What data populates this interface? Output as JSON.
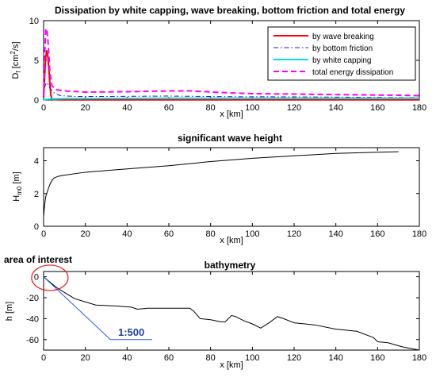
{
  "chart_data": [
    {
      "id": "p1",
      "type": "line",
      "title": "Dissipation by white capping, wave breaking, bottom friction and total energy",
      "xlabel": "x [km]",
      "ylabel_main": "D",
      "ylabel_sub": "f",
      "ylabel_unit": " [cm",
      "ylabel_sup": "2",
      "ylabel_tail": "/s]",
      "xlim": [
        0,
        180
      ],
      "ylim": [
        0,
        10
      ],
      "xticks": [
        0,
        20,
        40,
        60,
        80,
        100,
        120,
        140,
        160,
        180
      ],
      "yticks": [
        0,
        5,
        10
      ],
      "legend_position": "top-right",
      "series": [
        {
          "name": "by wave breaking",
          "color": "#ff0000",
          "dash": "solid",
          "width": 2,
          "points": [
            [
              0,
              0.3
            ],
            [
              0.5,
              3.0
            ],
            [
              1,
              5.4
            ],
            [
              1.5,
              6.2
            ],
            [
              2,
              5.5
            ],
            [
              2.5,
              4.0
            ],
            [
              3,
              2.0
            ],
            [
              3.5,
              0.6
            ],
            [
              4,
              0.15
            ],
            [
              5,
              0.05
            ],
            [
              8,
              0.03
            ],
            [
              20,
              0.02
            ],
            [
              60,
              0.02
            ],
            [
              100,
              0.02
            ],
            [
              140,
              0.02
            ],
            [
              180,
              0.02
            ]
          ]
        },
        {
          "name": "by bottom friction",
          "color": "#1a1acc",
          "dash": "dashdot",
          "width": 1,
          "points": [
            [
              0,
              0.2
            ],
            [
              0.5,
              1.6
            ],
            [
              1,
              2.0
            ],
            [
              1.5,
              2.2
            ],
            [
              2,
              2.0
            ],
            [
              3,
              1.5
            ],
            [
              5,
              0.9
            ],
            [
              8,
              0.55
            ],
            [
              15,
              0.45
            ],
            [
              30,
              0.45
            ],
            [
              60,
              0.5
            ],
            [
              90,
              0.42
            ],
            [
              120,
              0.4
            ],
            [
              150,
              0.35
            ],
            [
              180,
              0.3
            ]
          ]
        },
        {
          "name": "by white capping",
          "color": "#00e0e0",
          "dash": "solid",
          "width": 2,
          "points": [
            [
              0,
              0.05
            ],
            [
              2,
              0.1
            ],
            [
              5,
              0.15
            ],
            [
              10,
              0.18
            ],
            [
              30,
              0.2
            ],
            [
              60,
              0.22
            ],
            [
              90,
              0.22
            ],
            [
              120,
              0.22
            ],
            [
              150,
              0.22
            ],
            [
              180,
              0.22
            ]
          ]
        },
        {
          "name": "total energy dissipation",
          "color": "#ff00ff",
          "dash": "dashed",
          "width": 2,
          "points": [
            [
              0,
              0.5
            ],
            [
              0.5,
              5.5
            ],
            [
              1,
              8.8
            ],
            [
              1.5,
              9.0
            ],
            [
              2,
              7.8
            ],
            [
              2.5,
              5.8
            ],
            [
              3,
              3.5
            ],
            [
              4,
              1.8
            ],
            [
              6,
              1.3
            ],
            [
              10,
              1.15
            ],
            [
              20,
              1.0
            ],
            [
              40,
              1.05
            ],
            [
              60,
              1.15
            ],
            [
              70,
              1.15
            ],
            [
              85,
              0.95
            ],
            [
              100,
              0.8
            ],
            [
              120,
              0.75
            ],
            [
              150,
              0.65
            ],
            [
              170,
              0.6
            ],
            [
              180,
              0.55
            ]
          ]
        }
      ]
    },
    {
      "id": "p2",
      "type": "line",
      "title": "significant wave height",
      "xlabel": "x [km]",
      "ylabel_main": "H",
      "ylabel_sub": "m0",
      "ylabel_unit": " [m]",
      "xlim": [
        0,
        180
      ],
      "ylim": [
        0,
        4.8
      ],
      "xticks": [
        0,
        20,
        40,
        60,
        80,
        100,
        120,
        140,
        160,
        180
      ],
      "yticks": [
        0,
        2,
        4
      ],
      "series": [
        {
          "color": "#000000",
          "dash": "solid",
          "width": 1,
          "points": [
            [
              0,
              0.6
            ],
            [
              0.5,
              1.3
            ],
            [
              1,
              1.8
            ],
            [
              2,
              2.2
            ],
            [
              3,
              2.55
            ],
            [
              4,
              2.8
            ],
            [
              5,
              2.95
            ],
            [
              7,
              3.05
            ],
            [
              10,
              3.12
            ],
            [
              20,
              3.3
            ],
            [
              40,
              3.5
            ],
            [
              60,
              3.7
            ],
            [
              80,
              3.95
            ],
            [
              100,
              4.15
            ],
            [
              120,
              4.3
            ],
            [
              140,
              4.45
            ],
            [
              160,
              4.52
            ],
            [
              170,
              4.55
            ]
          ]
        }
      ]
    },
    {
      "id": "p3",
      "type": "line",
      "title": "bathymetry",
      "xlabel": "x [km]",
      "ylabel_main": "h [m]",
      "xlim": [
        0,
        180
      ],
      "ylim": [
        -70,
        5
      ],
      "xticks": [
        0,
        20,
        40,
        60,
        80,
        100,
        120,
        140,
        160,
        180
      ],
      "yticks": [
        0,
        -20,
        -40,
        -60
      ],
      "annotations": {
        "area_label": "area of interest",
        "slope_label": "1:500",
        "slope_color": "#3355ee",
        "slope_label_color": "#1f3fa8",
        "circle_color": "#e8191a"
      },
      "series": [
        {
          "color": "#000000",
          "dash": "solid",
          "width": 1,
          "points": [
            [
              0,
              0
            ],
            [
              3,
              -5
            ],
            [
              6,
              -10
            ],
            [
              10,
              -15
            ],
            [
              15,
              -21
            ],
            [
              20,
              -24
            ],
            [
              25,
              -27
            ],
            [
              35,
              -28
            ],
            [
              42,
              -29
            ],
            [
              45,
              -31
            ],
            [
              50,
              -30
            ],
            [
              60,
              -30
            ],
            [
              70,
              -30
            ],
            [
              72,
              -33
            ],
            [
              75,
              -40
            ],
            [
              80,
              -41
            ],
            [
              85,
              -43
            ],
            [
              87,
              -43
            ],
            [
              90,
              -37
            ],
            [
              92,
              -38
            ],
            [
              96,
              -42
            ],
            [
              100,
              -45
            ],
            [
              104,
              -49
            ],
            [
              108,
              -44
            ],
            [
              112,
              -38
            ],
            [
              115,
              -40
            ],
            [
              120,
              -44
            ],
            [
              130,
              -46
            ],
            [
              140,
              -50
            ],
            [
              150,
              -52
            ],
            [
              158,
              -58
            ],
            [
              160,
              -62
            ],
            [
              165,
              -63
            ],
            [
              172,
              -67
            ],
            [
              180,
              -70
            ]
          ]
        }
      ]
    }
  ]
}
